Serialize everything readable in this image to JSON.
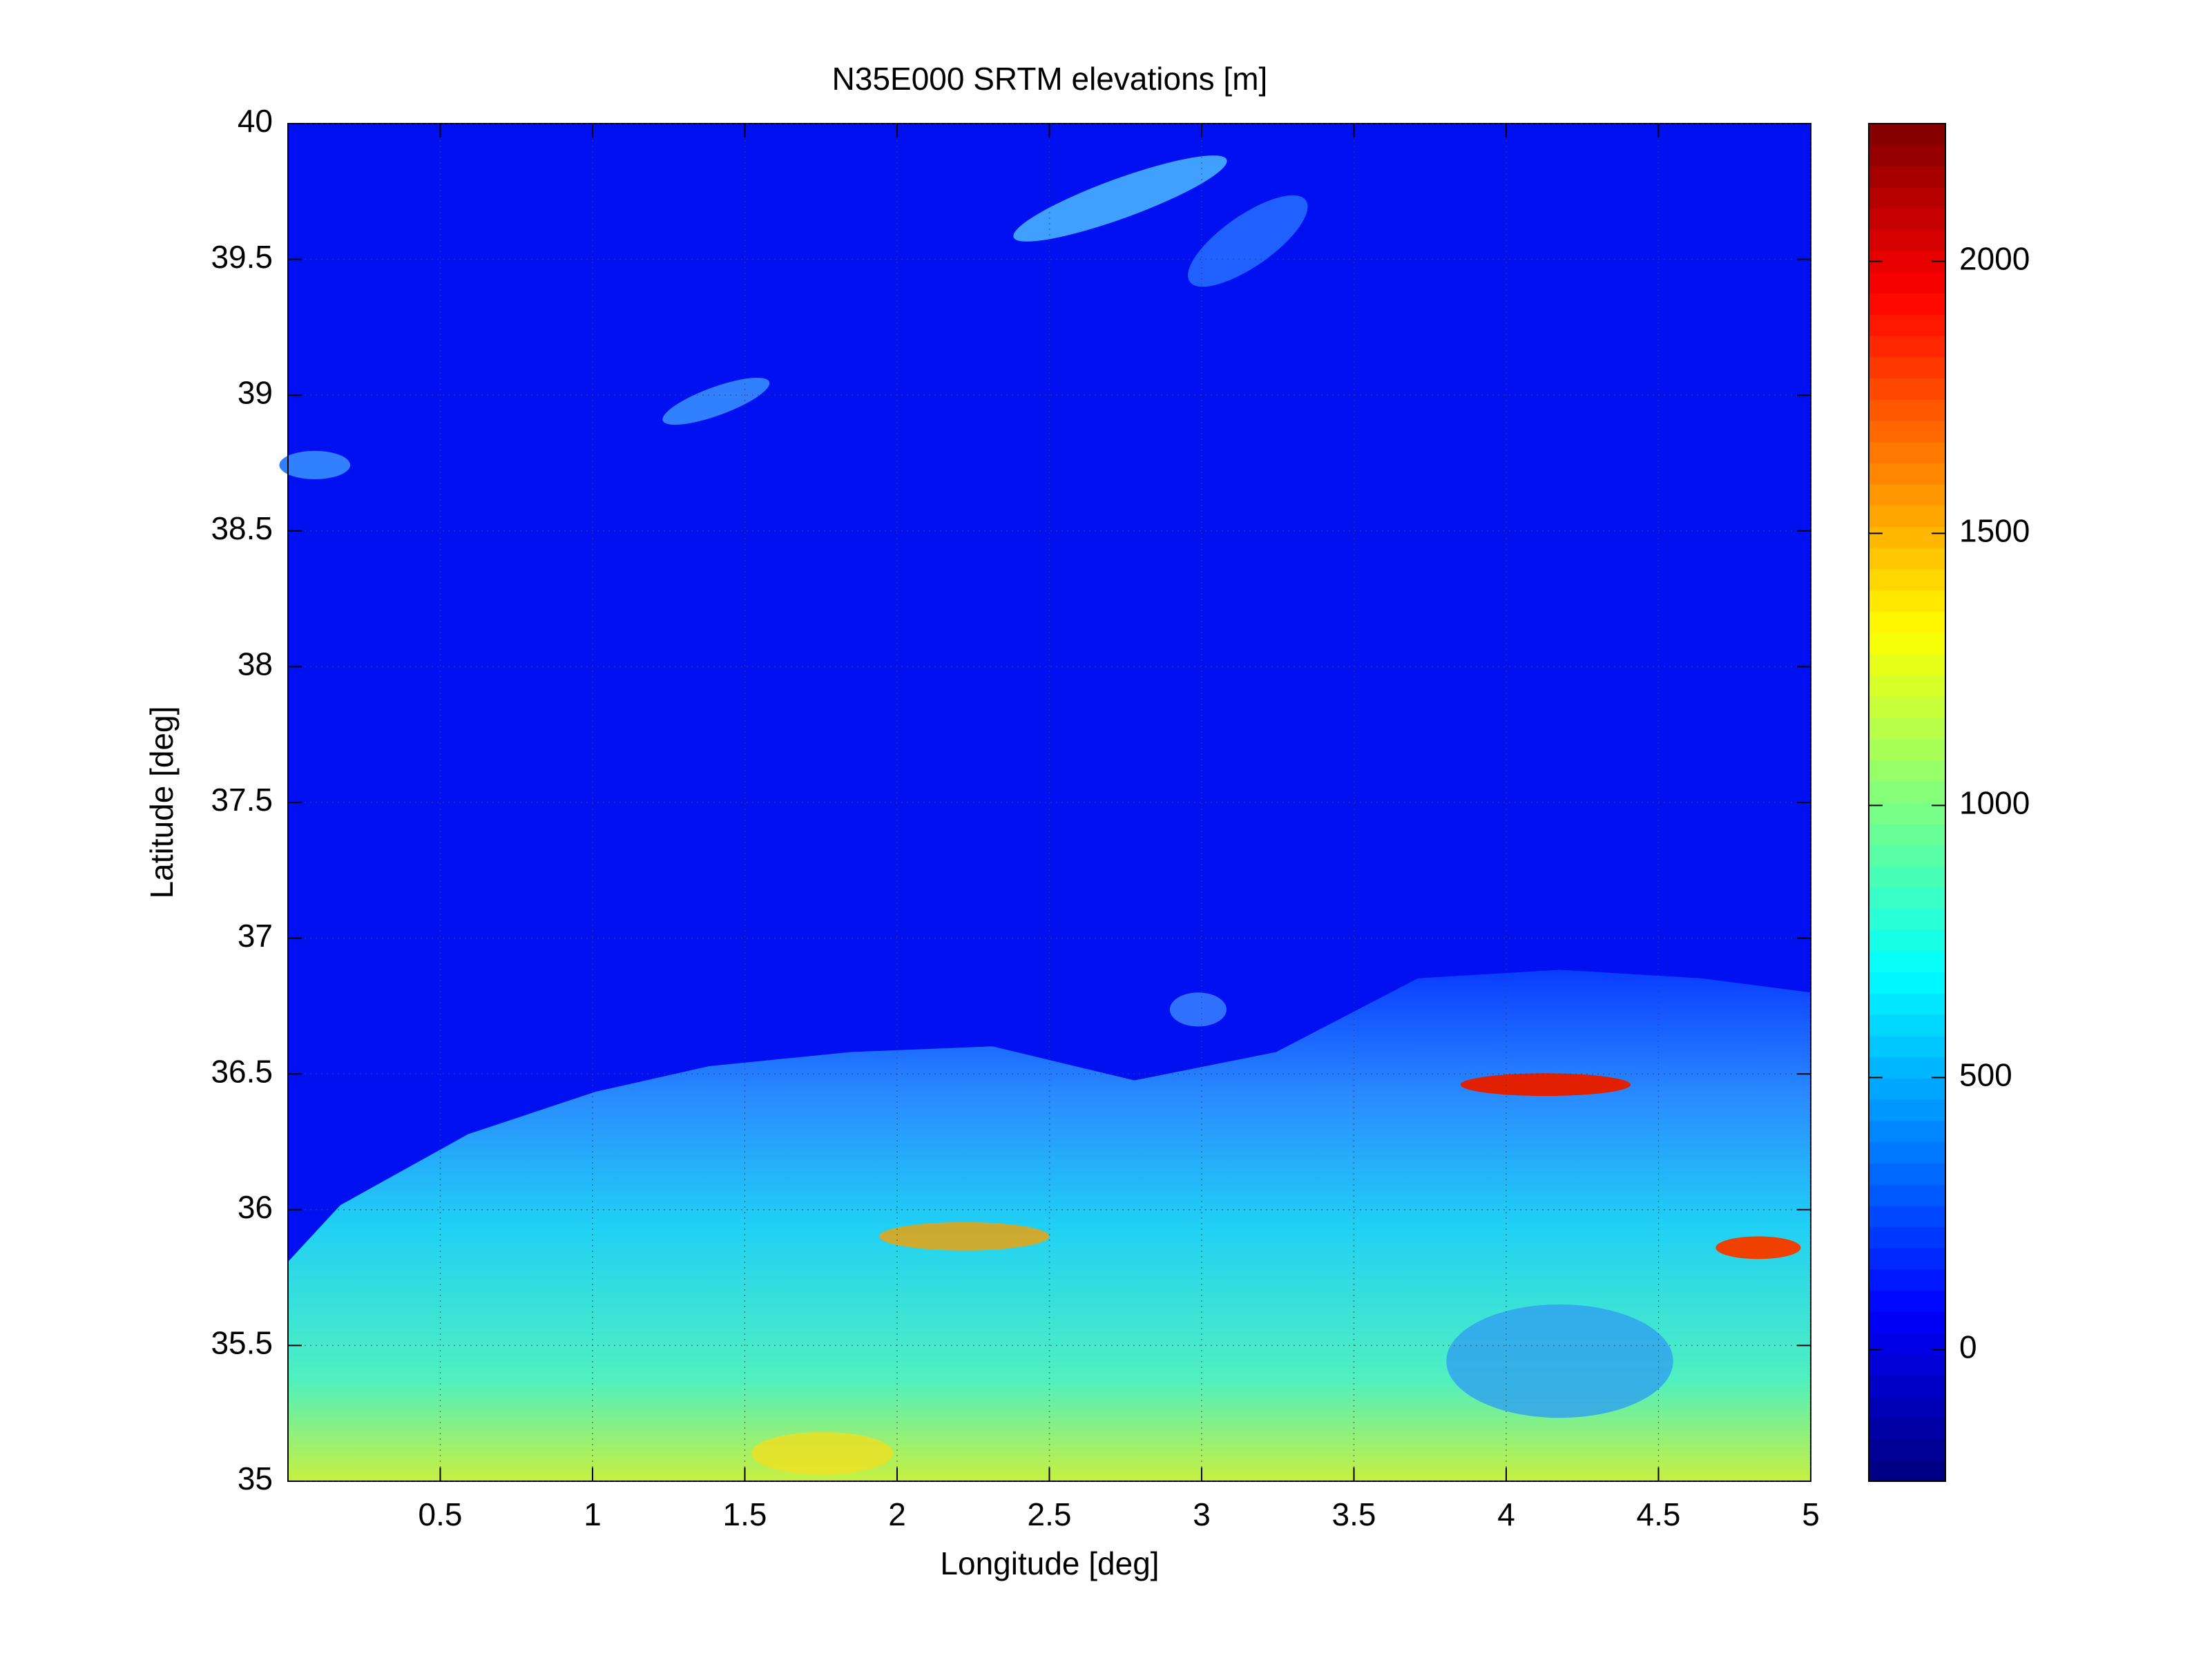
{
  "chart_data": {
    "type": "heatmap",
    "title": "N35E000 SRTM elevations [m]",
    "x_label": "Longitude [deg]",
    "y_label": "Latitude [deg]",
    "xlim": [
      0,
      5
    ],
    "xticks": [
      0.5,
      1,
      1.5,
      2,
      2.5,
      3,
      3.5,
      4,
      4.5,
      5
    ],
    "ylim": [
      35,
      40
    ],
    "yticks": [
      35,
      35.5,
      36,
      36.5,
      37,
      37.5,
      38,
      38.5,
      39,
      39.5,
      40
    ],
    "grid": true,
    "colormap": "jet",
    "clim": [
      -242,
      2253
    ],
    "cticks": [
      0,
      500,
      1000,
      1500,
      2000
    ]
  }
}
